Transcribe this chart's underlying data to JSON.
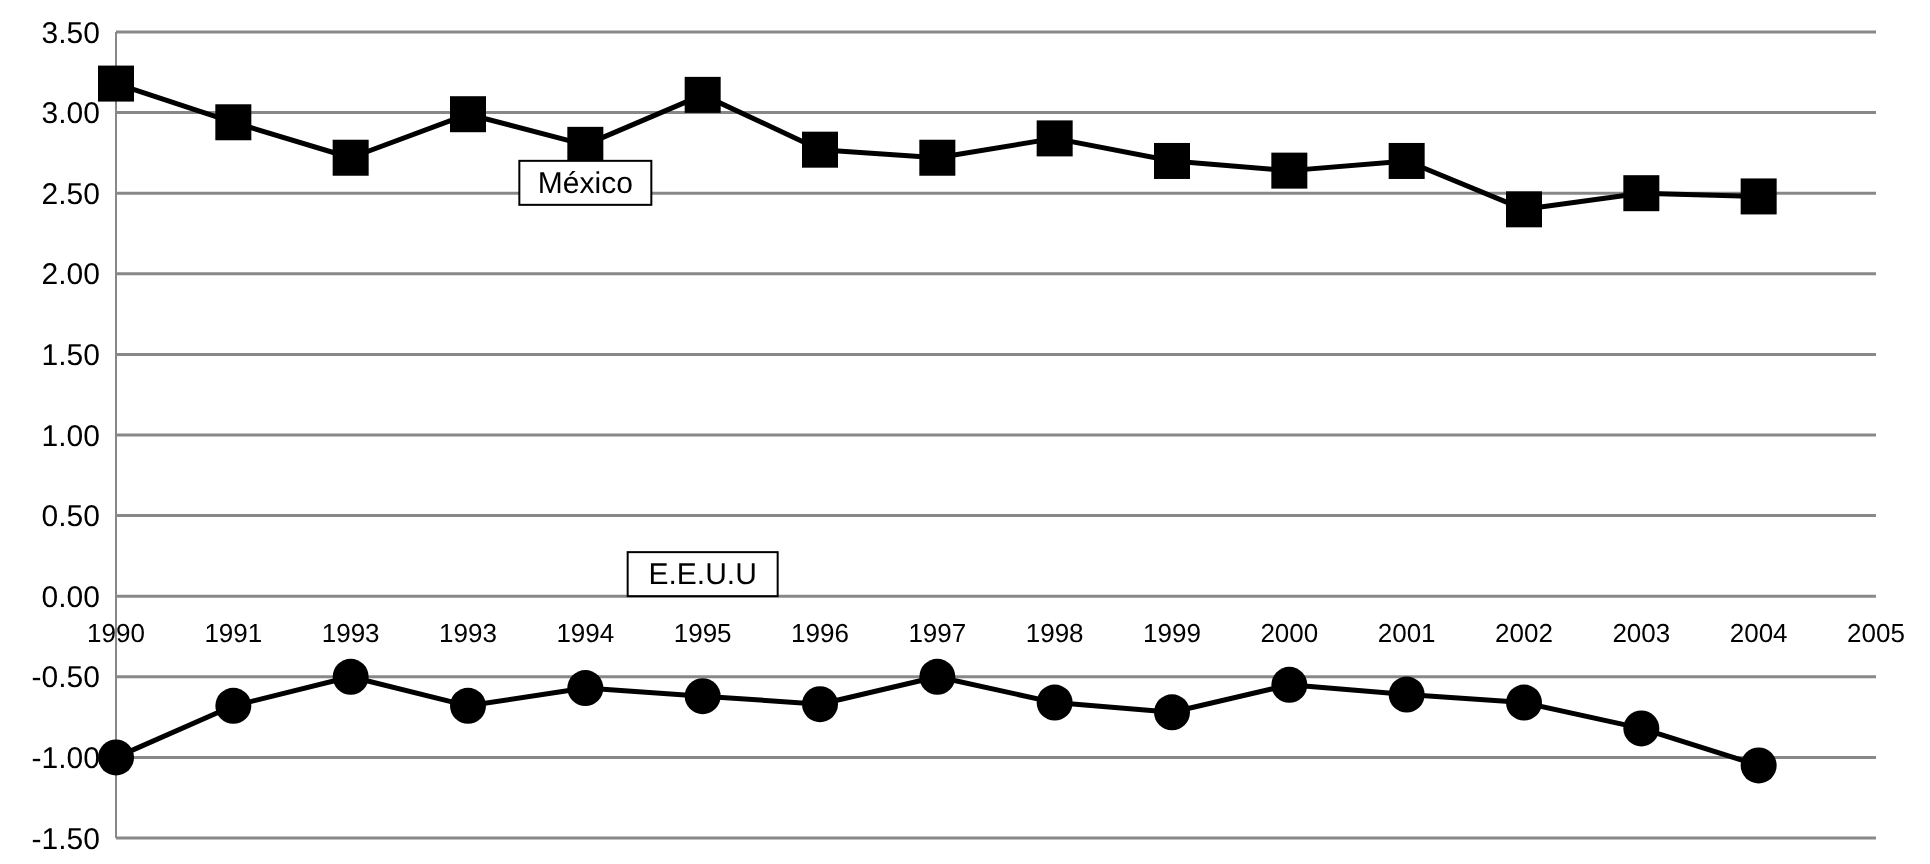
{
  "chart_data": {
    "type": "line",
    "categories": [
      "1990",
      "1991",
      "1993",
      "1993",
      "1994",
      "1995",
      "1996",
      "1997",
      "1998",
      "1999",
      "2000",
      "2001",
      "2002",
      "2003",
      "2004",
      "2005"
    ],
    "series": [
      {
        "name": "México",
        "color": "#000000",
        "marker": "square",
        "values": [
          3.18,
          2.94,
          2.72,
          2.99,
          2.8,
          3.11,
          2.77,
          2.72,
          2.84,
          2.7,
          2.64,
          2.7,
          2.4,
          2.5,
          2.48,
          null
        ]
      },
      {
        "name": "E.E.U.U",
        "color": "#000000",
        "marker": "circle",
        "values": [
          -1.0,
          -0.68,
          -0.5,
          -0.68,
          -0.57,
          -0.62,
          -0.67,
          -0.5,
          -0.66,
          -0.72,
          -0.55,
          -0.61,
          -0.66,
          -0.82,
          -1.05,
          null
        ]
      }
    ],
    "ylim": [
      -1.5,
      3.5
    ],
    "yticks": [
      {
        "value": -1.5,
        "label": "-1.50"
      },
      {
        "value": -1,
        "label": "-1.00"
      },
      {
        "value": -0.5,
        "label": "-0.50"
      },
      {
        "value": 0,
        "label": "0.00"
      },
      {
        "value": 0.5,
        "label": "0.50"
      },
      {
        "value": 1,
        "label": "1.00"
      },
      {
        "value": 1.5,
        "label": "1.50"
      },
      {
        "value": 2,
        "label": "2.00"
      },
      {
        "value": 2.5,
        "label": "2.50"
      },
      {
        "value": 3,
        "label": "3.00"
      },
      {
        "value": 3.5,
        "label": "3.50"
      }
    ],
    "grid": "y",
    "legend": false,
    "line_style": "solid"
  }
}
